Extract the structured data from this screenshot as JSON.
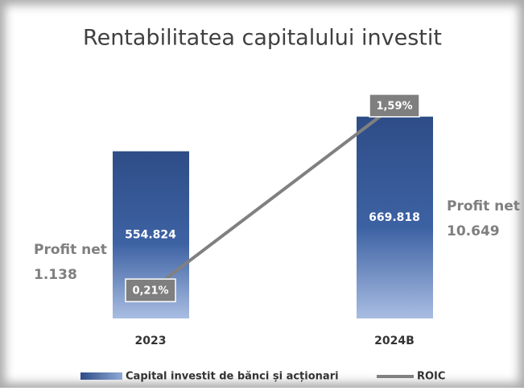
{
  "chart_data": {
    "type": "bar_line",
    "title": "Rentabilitatea capitalului investit",
    "categories": [
      "2023",
      "2024B"
    ],
    "series": [
      {
        "name": "Capital investit de bănci și acționari",
        "color": "#2e4d87",
        "values": [
          554824,
          669818
        ],
        "value_labels": [
          "554.824",
          "669.818"
        ]
      },
      {
        "name": "ROIC",
        "color": "#808080",
        "axis": "y2",
        "values": [
          0.21,
          1.59
        ],
        "value_labels": [
          "0,21%",
          "1,59%"
        ]
      }
    ],
    "ylim": [
      0,
      800000
    ],
    "y2lim": [
      0,
      1.8
    ],
    "annotations": [
      {
        "lines": [
          "Profit net",
          "1.138"
        ]
      },
      {
        "lines": [
          "Profit net",
          "10.649"
        ]
      }
    ]
  }
}
